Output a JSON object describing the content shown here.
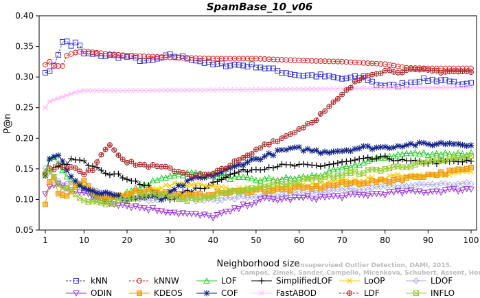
{
  "chart_data": {
    "type": "line",
    "title": "SpamBase_10_v06",
    "xlabel": "Neighborhood size",
    "ylabel": "P@n",
    "xlim": [
      1,
      100
    ],
    "ylim": [
      0.05,
      0.4
    ],
    "xticks": [
      1,
      10,
      20,
      30,
      40,
      50,
      60,
      70,
      80,
      90,
      100
    ],
    "yticks": [
      "0.05",
      "0.10",
      "0.15",
      "0.20",
      "0.25",
      "0.30",
      "0.35",
      "0.40"
    ],
    "grid": false,
    "legend_position": "bottom",
    "watermark": "Campos, Zimek, Sander, Campello, Micenkova, Schubert, Assent, Houle",
    "watermark2": "Unsupervised Outlier Detection, DAMI, 2015.",
    "series": [
      {
        "name": "kNN",
        "color": "#3333dd",
        "marker": "square",
        "dash": "3,2",
        "knots": [
          [
            1,
            0.31
          ],
          [
            2,
            0.307
          ],
          [
            3,
            0.32
          ],
          [
            4,
            0.338
          ],
          [
            5,
            0.356
          ],
          [
            6,
            0.358
          ],
          [
            7,
            0.352
          ],
          [
            8,
            0.355
          ],
          [
            9,
            0.35
          ],
          [
            10,
            0.338
          ],
          [
            15,
            0.335
          ],
          [
            20,
            0.333
          ],
          [
            25,
            0.325
          ],
          [
            30,
            0.335
          ],
          [
            35,
            0.33
          ],
          [
            40,
            0.32
          ],
          [
            45,
            0.32
          ],
          [
            50,
            0.318
          ],
          [
            55,
            0.31
          ],
          [
            60,
            0.303
          ],
          [
            65,
            0.302
          ],
          [
            70,
            0.297
          ],
          [
            75,
            0.3
          ],
          [
            78,
            0.288
          ],
          [
            82,
            0.285
          ],
          [
            85,
            0.29
          ],
          [
            88,
            0.295
          ],
          [
            95,
            0.295
          ],
          [
            97,
            0.285
          ],
          [
            100,
            0.288
          ]
        ]
      },
      {
        "name": "kNNW",
        "color": "#dd2222",
        "marker": "circle",
        "dash": "3,2",
        "knots": [
          [
            1,
            0.32
          ],
          [
            2,
            0.325
          ],
          [
            3,
            0.318
          ],
          [
            5,
            0.318
          ],
          [
            6,
            0.335
          ],
          [
            8,
            0.34
          ],
          [
            10,
            0.342
          ],
          [
            15,
            0.338
          ],
          [
            20,
            0.335
          ],
          [
            30,
            0.332
          ],
          [
            40,
            0.33
          ],
          [
            50,
            0.33
          ],
          [
            60,
            0.327
          ],
          [
            70,
            0.325
          ],
          [
            75,
            0.323
          ],
          [
            80,
            0.321
          ],
          [
            85,
            0.315
          ],
          [
            90,
            0.314
          ],
          [
            100,
            0.314
          ]
        ]
      },
      {
        "name": "LOF",
        "color": "#22cc22",
        "marker": "triangle-up",
        "dash": "",
        "knots": [
          [
            1,
            0.145
          ],
          [
            2,
            0.168
          ],
          [
            3,
            0.172
          ],
          [
            4,
            0.16
          ],
          [
            6,
            0.14
          ],
          [
            8,
            0.125
          ],
          [
            10,
            0.12
          ],
          [
            12,
            0.105
          ],
          [
            15,
            0.098
          ],
          [
            20,
            0.11
          ],
          [
            25,
            0.125
          ],
          [
            30,
            0.14
          ],
          [
            35,
            0.143
          ],
          [
            40,
            0.14
          ],
          [
            45,
            0.135
          ],
          [
            50,
            0.132
          ],
          [
            55,
            0.133
          ],
          [
            60,
            0.135
          ],
          [
            65,
            0.14
          ],
          [
            70,
            0.15
          ],
          [
            75,
            0.16
          ],
          [
            80,
            0.17
          ],
          [
            85,
            0.175
          ],
          [
            90,
            0.175
          ],
          [
            100,
            0.175
          ]
        ]
      },
      {
        "name": "SimplifiedLOF",
        "color": "#000000",
        "marker": "plus",
        "dash": "",
        "knots": [
          [
            1,
            0.14
          ],
          [
            2,
            0.145
          ],
          [
            3,
            0.15
          ],
          [
            5,
            0.155
          ],
          [
            7,
            0.165
          ],
          [
            9,
            0.163
          ],
          [
            11,
            0.158
          ],
          [
            13,
            0.155
          ],
          [
            15,
            0.145
          ],
          [
            20,
            0.135
          ],
          [
            25,
            0.12
          ],
          [
            28,
            0.105
          ],
          [
            30,
            0.1
          ],
          [
            33,
            0.11
          ],
          [
            38,
            0.12
          ],
          [
            42,
            0.135
          ],
          [
            46,
            0.145
          ],
          [
            50,
            0.15
          ],
          [
            55,
            0.155
          ],
          [
            60,
            0.155
          ],
          [
            65,
            0.155
          ],
          [
            70,
            0.16
          ],
          [
            75,
            0.165
          ],
          [
            80,
            0.168
          ],
          [
            85,
            0.162
          ],
          [
            90,
            0.16
          ],
          [
            100,
            0.162
          ]
        ]
      },
      {
        "name": "LoOP",
        "color": "#ffcc00",
        "marker": "x",
        "dash": "",
        "knots": [
          [
            1,
            0.14
          ],
          [
            2,
            0.15
          ],
          [
            3,
            0.13
          ],
          [
            5,
            0.12
          ],
          [
            8,
            0.13
          ],
          [
            10,
            0.12
          ],
          [
            15,
            0.105
          ],
          [
            20,
            0.11
          ],
          [
            25,
            0.115
          ],
          [
            30,
            0.125
          ],
          [
            35,
            0.125
          ],
          [
            40,
            0.12
          ],
          [
            45,
            0.118
          ],
          [
            50,
            0.12
          ],
          [
            55,
            0.12
          ],
          [
            60,
            0.122
          ],
          [
            65,
            0.125
          ],
          [
            70,
            0.13
          ],
          [
            75,
            0.132
          ],
          [
            80,
            0.135
          ],
          [
            85,
            0.14
          ],
          [
            90,
            0.14
          ],
          [
            100,
            0.145
          ]
        ]
      },
      {
        "name": "LDOF",
        "color": "#aaaaee",
        "marker": "diamond",
        "dash": "",
        "knots": [
          [
            1,
            0.15
          ],
          [
            2,
            0.145
          ],
          [
            3,
            0.135
          ],
          [
            5,
            0.12
          ],
          [
            8,
            0.13
          ],
          [
            10,
            0.118
          ],
          [
            15,
            0.11
          ],
          [
            20,
            0.105
          ],
          [
            25,
            0.1
          ],
          [
            30,
            0.105
          ],
          [
            35,
            0.1
          ],
          [
            40,
            0.1
          ],
          [
            45,
            0.102
          ],
          [
            50,
            0.105
          ],
          [
            55,
            0.105
          ],
          [
            60,
            0.11
          ],
          [
            65,
            0.112
          ],
          [
            70,
            0.115
          ],
          [
            75,
            0.118
          ],
          [
            80,
            0.12
          ],
          [
            85,
            0.122
          ],
          [
            90,
            0.125
          ],
          [
            100,
            0.125
          ]
        ]
      },
      {
        "name": "ODIN",
        "color": "#9933dd",
        "marker": "triangle-down",
        "dash": "",
        "knots": [
          [
            1,
            0.11
          ],
          [
            2,
            0.12
          ],
          [
            4,
            0.125
          ],
          [
            6,
            0.12
          ],
          [
            8,
            0.115
          ],
          [
            10,
            0.11
          ],
          [
            13,
            0.1
          ],
          [
            16,
            0.095
          ],
          [
            20,
            0.09
          ],
          [
            25,
            0.085
          ],
          [
            30,
            0.08
          ],
          [
            35,
            0.075
          ],
          [
            40,
            0.072
          ],
          [
            44,
            0.08
          ],
          [
            48,
            0.092
          ],
          [
            52,
            0.1
          ],
          [
            56,
            0.1
          ],
          [
            60,
            0.102
          ],
          [
            65,
            0.103
          ],
          [
            70,
            0.105
          ],
          [
            75,
            0.107
          ],
          [
            80,
            0.11
          ],
          [
            85,
            0.112
          ],
          [
            90,
            0.113
          ],
          [
            95,
            0.115
          ],
          [
            100,
            0.117
          ]
        ]
      },
      {
        "name": "KDEOS",
        "color": "#ee9900",
        "marker": "square-filled",
        "dash": "",
        "knots": [
          [
            1,
            0.093
          ],
          [
            2,
            0.13
          ],
          [
            3,
            0.14
          ],
          [
            4,
            0.11
          ],
          [
            6,
            0.105
          ],
          [
            8,
            0.12
          ],
          [
            10,
            0.13
          ],
          [
            12,
            0.11
          ],
          [
            15,
            0.1
          ],
          [
            20,
            0.11
          ],
          [
            25,
            0.115
          ],
          [
            30,
            0.11
          ],
          [
            35,
            0.105
          ],
          [
            40,
            0.11
          ],
          [
            45,
            0.112
          ],
          [
            50,
            0.115
          ],
          [
            55,
            0.115
          ],
          [
            60,
            0.118
          ],
          [
            65,
            0.12
          ],
          [
            70,
            0.125
          ],
          [
            75,
            0.128
          ],
          [
            80,
            0.13
          ],
          [
            85,
            0.135
          ],
          [
            90,
            0.14
          ],
          [
            100,
            0.15
          ]
        ]
      },
      {
        "name": "COF",
        "color": "#112288",
        "marker": "star",
        "dash": "",
        "knots": [
          [
            1,
            0.14
          ],
          [
            2,
            0.165
          ],
          [
            3,
            0.17
          ],
          [
            4,
            0.175
          ],
          [
            5,
            0.165
          ],
          [
            6,
            0.15
          ],
          [
            7,
            0.14
          ],
          [
            8,
            0.13
          ],
          [
            10,
            0.12
          ],
          [
            12,
            0.113
          ],
          [
            15,
            0.11
          ],
          [
            20,
            0.1
          ],
          [
            25,
            0.105
          ],
          [
            28,
            0.1
          ],
          [
            32,
            0.12
          ],
          [
            36,
            0.135
          ],
          [
            38,
            0.135
          ],
          [
            40,
            0.14
          ],
          [
            44,
            0.15
          ],
          [
            48,
            0.162
          ],
          [
            52,
            0.17
          ],
          [
            56,
            0.18
          ],
          [
            60,
            0.183
          ],
          [
            65,
            0.178
          ],
          [
            70,
            0.18
          ],
          [
            75,
            0.185
          ],
          [
            80,
            0.185
          ],
          [
            85,
            0.19
          ],
          [
            90,
            0.19
          ],
          [
            95,
            0.192
          ],
          [
            100,
            0.19
          ]
        ]
      },
      {
        "name": "FastABOD",
        "color": "#ffbbff",
        "marker": "asterisk",
        "dash": "",
        "knots": [
          [
            1,
            0.25
          ],
          [
            2,
            0.26
          ],
          [
            4,
            0.265
          ],
          [
            6,
            0.27
          ],
          [
            8,
            0.275
          ],
          [
            10,
            0.278
          ],
          [
            20,
            0.278
          ],
          [
            40,
            0.279
          ],
          [
            60,
            0.28
          ],
          [
            80,
            0.282
          ],
          [
            100,
            0.283
          ]
        ]
      },
      {
        "name": "LDF",
        "color": "#aa2222",
        "marker": "circle-plus",
        "dash": "3,2",
        "knots": [
          [
            1,
            0.14
          ],
          [
            2,
            0.15
          ],
          [
            5,
            0.155
          ],
          [
            8,
            0.15
          ],
          [
            10,
            0.14
          ],
          [
            12,
            0.15
          ],
          [
            14,
            0.175
          ],
          [
            16,
            0.19
          ],
          [
            18,
            0.175
          ],
          [
            20,
            0.16
          ],
          [
            25,
            0.155
          ],
          [
            30,
            0.15
          ],
          [
            35,
            0.14
          ],
          [
            40,
            0.14
          ],
          [
            42,
            0.15
          ],
          [
            45,
            0.16
          ],
          [
            48,
            0.17
          ],
          [
            52,
            0.19
          ],
          [
            56,
            0.2
          ],
          [
            60,
            0.215
          ],
          [
            64,
            0.232
          ],
          [
            67,
            0.25
          ],
          [
            70,
            0.27
          ],
          [
            73,
            0.29
          ],
          [
            76,
            0.305
          ],
          [
            80,
            0.31
          ],
          [
            85,
            0.31
          ],
          [
            90,
            0.31
          ],
          [
            100,
            0.308
          ]
        ]
      },
      {
        "name": "INFLO",
        "color": "#99cc33",
        "marker": "square-x",
        "dash": "",
        "knots": [
          [
            1,
            0.14
          ],
          [
            2,
            0.15
          ],
          [
            3,
            0.135
          ],
          [
            5,
            0.12
          ],
          [
            8,
            0.11
          ],
          [
            10,
            0.1
          ],
          [
            12,
            0.097
          ],
          [
            15,
            0.092
          ],
          [
            20,
            0.1
          ],
          [
            25,
            0.11
          ],
          [
            30,
            0.105
          ],
          [
            33,
            0.1
          ],
          [
            36,
            0.1
          ],
          [
            40,
            0.105
          ],
          [
            45,
            0.112
          ],
          [
            50,
            0.12
          ],
          [
            55,
            0.125
          ],
          [
            60,
            0.13
          ],
          [
            65,
            0.135
          ],
          [
            70,
            0.14
          ],
          [
            75,
            0.145
          ],
          [
            80,
            0.15
          ],
          [
            85,
            0.155
          ],
          [
            90,
            0.16
          ],
          [
            100,
            0.17
          ]
        ]
      }
    ]
  }
}
